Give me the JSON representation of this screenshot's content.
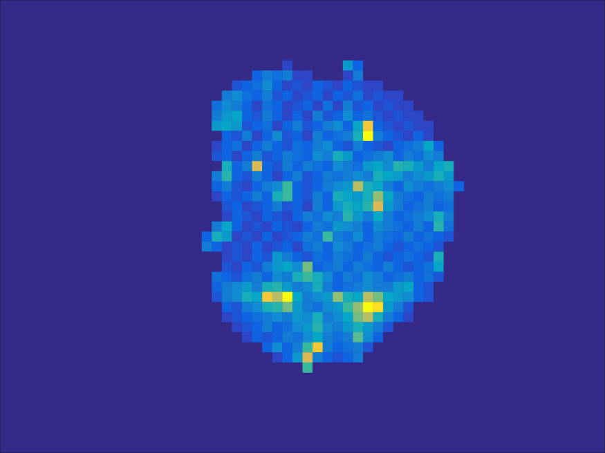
{
  "chart_data": {
    "type": "heatmap",
    "tick_labels": false,
    "xlim": [
      0.5,
      60.5
    ],
    "ylim": [
      0.5,
      45.5
    ],
    "color_range": [
      0,
      1
    ],
    "x": [
      21,
      22,
      23,
      24,
      25,
      26,
      27,
      28,
      29,
      30,
      31,
      32,
      33,
      34,
      35,
      36,
      37,
      38,
      39,
      40,
      41,
      42,
      43,
      44,
      45,
      46
    ],
    "y": [
      7,
      8,
      9,
      10,
      11,
      12,
      13,
      14,
      15,
      16,
      17,
      18,
      19,
      20,
      21,
      22,
      23,
      24,
      25,
      26,
      27,
      28,
      29,
      30,
      31,
      32,
      33,
      34,
      35,
      36,
      37
    ],
    "cells": [
      [
        0,
        0,
        0,
        0,
        0,
        0,
        0,
        0,
        0.1,
        0,
        0,
        0,
        0,
        0,
        0.4,
        0.2,
        0,
        0,
        0,
        0,
        0,
        0,
        0,
        0,
        0,
        0
      ],
      [
        0,
        0,
        0,
        0,
        0,
        0.2,
        0.3,
        0.25,
        0.3,
        0.1,
        0.1,
        0,
        0,
        0,
        0.1,
        0.3,
        0,
        0,
        0,
        0,
        0,
        0,
        0,
        0,
        0,
        0
      ],
      [
        0,
        0,
        0,
        0.15,
        0.2,
        0.25,
        0.35,
        0.2,
        0.1,
        0.15,
        0.1,
        0.2,
        0.15,
        0.1,
        0.2,
        0.15,
        0.1,
        0.1,
        0,
        0,
        0,
        0,
        0,
        0,
        0,
        0
      ],
      [
        0,
        0,
        0.3,
        0.35,
        0.25,
        0.2,
        0.3,
        0.15,
        0.2,
        0.1,
        0.15,
        0.2,
        0.1,
        0.2,
        0.15,
        0.25,
        0.1,
        0.15,
        0.1,
        0.1,
        0,
        0,
        0,
        0,
        0,
        0
      ],
      [
        0,
        0.25,
        0.35,
        0.3,
        0.2,
        0.1,
        0.25,
        0.2,
        0.1,
        0.15,
        0.2,
        0.1,
        0.25,
        0.1,
        0.3,
        0.15,
        0.2,
        0.1,
        0.15,
        0.1,
        0.1,
        0,
        0,
        0,
        0,
        0
      ],
      [
        0,
        0.3,
        0.4,
        0.45,
        0.2,
        0.15,
        0.3,
        0.2,
        0.1,
        0.2,
        0.1,
        0.3,
        0.15,
        0.2,
        0.35,
        0.2,
        0.25,
        0.15,
        0.1,
        0.15,
        0.1,
        0.1,
        0,
        0,
        0,
        0
      ],
      [
        0,
        0.4,
        0.45,
        0.4,
        0.15,
        0.2,
        0.25,
        0.1,
        0.2,
        0.3,
        0.15,
        0.2,
        0.3,
        0.35,
        0.2,
        0.45,
        0.9,
        0.2,
        0.15,
        0.1,
        0.15,
        0.1,
        0.1,
        0,
        0,
        0
      ],
      [
        0,
        0,
        0.2,
        0.15,
        0.3,
        0.1,
        0.2,
        0.35,
        0.15,
        0.2,
        0.1,
        0.3,
        0.2,
        0.25,
        0.3,
        0.5,
        1.0,
        0.3,
        0.2,
        0.15,
        0.1,
        0.2,
        0.1,
        0,
        0,
        0
      ],
      [
        0,
        0.1,
        0.2,
        0.25,
        0.1,
        0.2,
        0.3,
        0.2,
        0.15,
        0.25,
        0.2,
        0.3,
        0.35,
        0.2,
        0.15,
        0.3,
        0.2,
        0.15,
        0.1,
        0.2,
        0.25,
        0.3,
        0.45,
        0.2,
        0,
        0
      ],
      [
        0,
        0.15,
        0.2,
        0.1,
        0.2,
        0.3,
        0.15,
        0.2,
        0.3,
        0.25,
        0.2,
        0.35,
        0.3,
        0.5,
        0.4,
        0.2,
        0.25,
        0.3,
        0.35,
        0.2,
        0.3,
        0.25,
        0.35,
        0.3,
        0,
        0
      ],
      [
        0,
        0,
        0.5,
        0.2,
        0.3,
        0.85,
        0.2,
        0.15,
        0.3,
        0.2,
        0.3,
        0.25,
        0.2,
        0.35,
        0.3,
        0.25,
        0.4,
        0.45,
        0.35,
        0.55,
        0.5,
        0.4,
        0.3,
        0.45,
        0.5,
        0
      ],
      [
        0,
        0.3,
        0.55,
        0.2,
        0.15,
        0.3,
        0.2,
        0.1,
        0.2,
        0.3,
        0.15,
        0.2,
        0.3,
        0.25,
        0.3,
        0.35,
        0.3,
        0.5,
        0.45,
        0.4,
        0.3,
        0.35,
        0.4,
        0.5,
        0.4,
        0
      ],
      [
        0,
        0.2,
        0.3,
        0.15,
        0.1,
        0.2,
        0.3,
        0.35,
        0.6,
        0.2,
        0.15,
        0.2,
        0.3,
        0.35,
        0.4,
        0.8,
        0.5,
        0.45,
        0.3,
        0.2,
        0.35,
        0.3,
        0.25,
        0.3,
        0.35,
        0.2
      ],
      [
        0,
        0.1,
        0.2,
        0.15,
        0.2,
        0.3,
        0.2,
        0.5,
        0.6,
        0.2,
        0.15,
        0.3,
        0.2,
        0.5,
        0.45,
        0.4,
        0.5,
        0.75,
        0.45,
        0.3,
        0.25,
        0.2,
        0.3,
        0.25,
        0.3,
        0
      ],
      [
        0,
        0,
        0.15,
        0.2,
        0.1,
        0.15,
        0.2,
        0.3,
        0.15,
        0.2,
        0.1,
        0.3,
        0.2,
        0.4,
        0.5,
        0.45,
        0.55,
        0.85,
        0.4,
        0.3,
        0.2,
        0.25,
        0.3,
        0.2,
        0.25,
        0
      ],
      [
        0,
        0,
        0.1,
        0.2,
        0.15,
        0.1,
        0.2,
        0.15,
        0.1,
        0.2,
        0.3,
        0.25,
        0.35,
        0.3,
        0.55,
        0.4,
        0.3,
        0.45,
        0.3,
        0.2,
        0.25,
        0.3,
        0.35,
        0.5,
        0.3,
        0
      ],
      [
        0,
        0.3,
        0.45,
        0.2,
        0.1,
        0.15,
        0.1,
        0.2,
        0.15,
        0.1,
        0.2,
        0.3,
        0.25,
        0.4,
        0.35,
        0.3,
        0.2,
        0.35,
        0.3,
        0.25,
        0.2,
        0.3,
        0.2,
        0.55,
        0.25,
        0
      ],
      [
        0.2,
        0.5,
        0.4,
        0.1,
        0.15,
        0.1,
        0.2,
        0.1,
        0.15,
        0.2,
        0.3,
        0.25,
        0.6,
        0.3,
        0.25,
        0.35,
        0.2,
        0.3,
        0.25,
        0.2,
        0.3,
        0.2,
        0.25,
        0.2,
        0.15,
        0
      ],
      [
        0.3,
        0.2,
        0.1,
        0.15,
        0.1,
        0.2,
        0.1,
        0.15,
        0.2,
        0.1,
        0.25,
        0.3,
        0.2,
        0.35,
        0.3,
        0.2,
        0.25,
        0.3,
        0.2,
        0.15,
        0.2,
        0.25,
        0.2,
        0.15,
        0,
        0
      ],
      [
        0,
        0,
        0.1,
        0.15,
        0.1,
        0.2,
        0.15,
        0.4,
        0.3,
        0.2,
        0.15,
        0.25,
        0.2,
        0.3,
        0.25,
        0.2,
        0.3,
        0.2,
        0.15,
        0.2,
        0.25,
        0.2,
        0.15,
        0.5,
        0,
        0
      ],
      [
        0,
        0,
        0.15,
        0.1,
        0.2,
        0.15,
        0.3,
        0.4,
        0.45,
        0.35,
        0.7,
        0.2,
        0.25,
        0.3,
        0.2,
        0.3,
        0.25,
        0.2,
        0.3,
        0.2,
        0.15,
        0.2,
        0.25,
        0.45,
        0,
        0
      ],
      [
        0,
        0.25,
        0.2,
        0.15,
        0.25,
        0.3,
        0.2,
        0.35,
        0.3,
        0.5,
        0.6,
        0.5,
        0.35,
        0.2,
        0.3,
        0.25,
        0.35,
        0.3,
        0.2,
        0.25,
        0.3,
        0.2,
        0.25,
        0.15,
        0,
        0
      ],
      [
        0,
        0.2,
        0.3,
        0.35,
        0.4,
        0.3,
        0.5,
        0.55,
        0.4,
        0.3,
        0.35,
        0.5,
        0.3,
        0.2,
        0.25,
        0.3,
        0.35,
        0.3,
        0.3,
        0.4,
        0.45,
        0.2,
        0.15,
        0,
        0,
        0
      ],
      [
        0,
        0.15,
        0.3,
        0.35,
        0.5,
        0.45,
        0.9,
        0.8,
        1.0,
        0.45,
        0.3,
        0.35,
        0.4,
        0.75,
        0.5,
        0.45,
        0.8,
        0.7,
        0.45,
        0.4,
        0.35,
        0.2,
        0.15,
        0,
        0,
        0
      ],
      [
        0,
        0,
        0.2,
        0.15,
        0.3,
        0.35,
        0.5,
        0.55,
        0.7,
        0.4,
        0.3,
        0.25,
        0.35,
        0.4,
        0.6,
        0.75,
        1.0,
        0.95,
        0.4,
        0.3,
        0.15,
        0,
        0,
        0,
        0,
        0
      ],
      [
        0,
        0,
        0.1,
        0.15,
        0.2,
        0.25,
        0.3,
        0.35,
        0.3,
        0.4,
        0.35,
        0.5,
        0.3,
        0.35,
        0.45,
        0.7,
        0.8,
        0.5,
        0.3,
        0.2,
        0.1,
        0,
        0,
        0,
        0,
        0
      ],
      [
        0,
        0,
        0,
        0.1,
        0.15,
        0.2,
        0.3,
        0.2,
        0.25,
        0.35,
        0.4,
        0.55,
        0.35,
        0.3,
        0.4,
        0.5,
        0.4,
        0.3,
        0.15,
        0,
        0,
        0,
        0,
        0,
        0,
        0
      ],
      [
        0,
        0,
        0,
        0,
        0.1,
        0.2,
        0.15,
        0.2,
        0.3,
        0.25,
        0.35,
        0.45,
        0.3,
        0.25,
        0.3,
        0.65,
        0.35,
        0.2,
        0,
        0,
        0,
        0,
        0,
        0,
        0,
        0
      ],
      [
        0,
        0,
        0,
        0,
        0,
        0,
        0.2,
        0.35,
        0.2,
        0.3,
        0.6,
        0.9,
        0.3,
        0.2,
        0.25,
        0.3,
        0.15,
        0,
        0,
        0,
        0,
        0,
        0,
        0,
        0,
        0
      ],
      [
        0,
        0,
        0,
        0,
        0,
        0,
        0,
        0.1,
        0.2,
        0.4,
        0.85,
        0.3,
        0.2,
        0.15,
        0.2,
        0.3,
        0,
        0,
        0,
        0,
        0,
        0,
        0,
        0,
        0,
        0
      ],
      [
        0,
        0,
        0,
        0,
        0,
        0,
        0,
        0,
        0,
        0,
        0.6,
        0,
        0,
        0,
        0,
        0,
        0,
        0,
        0,
        0,
        0,
        0,
        0,
        0,
        0,
        0
      ]
    ]
  }
}
